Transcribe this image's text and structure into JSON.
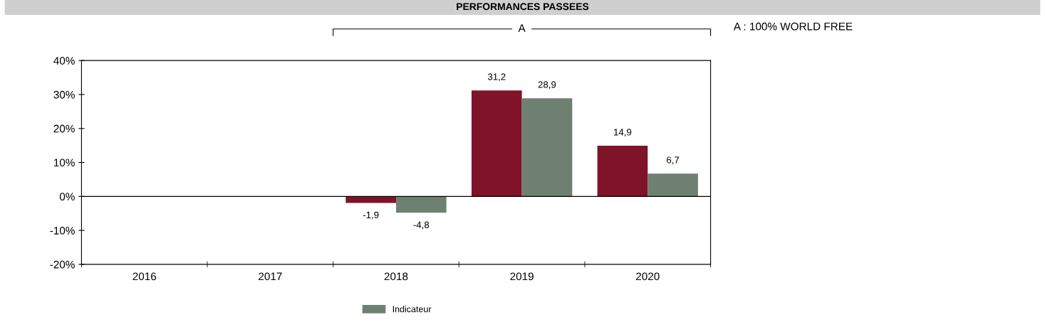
{
  "chart_data": {
    "type": "bar",
    "title": "PERFORMANCES PASSEES",
    "categories": [
      "2016",
      "2017",
      "2018",
      "2019",
      "2020"
    ],
    "series": [
      {
        "color": "#7f1327",
        "values": [
          null,
          null,
          -1.9,
          31.2,
          14.9
        ],
        "value_labels": [
          null,
          null,
          "-1,9",
          "31,2",
          "14,9"
        ]
      },
      {
        "name": "Indicateur",
        "color": "#6e8072",
        "values": [
          null,
          null,
          -4.8,
          28.9,
          6.7
        ],
        "value_labels": [
          null,
          null,
          "-4,8",
          "28,9",
          "6,7"
        ]
      }
    ],
    "ylim": [
      -20,
      40
    ],
    "yticks": [
      {
        "value": -20,
        "label": "-20%"
      },
      {
        "value": -10,
        "label": "-10%"
      },
      {
        "value": 0,
        "label": "0%"
      },
      {
        "value": 10,
        "label": "10%"
      },
      {
        "value": 20,
        "label": "20%"
      },
      {
        "value": 30,
        "label": "30%"
      },
      {
        "value": 40,
        "label": "40%"
      }
    ],
    "ref_lines": [
      {
        "axis": "y",
        "value": 0,
        "color": "#000000"
      }
    ],
    "annotations": [
      "A",
      "A : 100% WORLD FREE"
    ],
    "grid": false,
    "legend": "bottom"
  }
}
